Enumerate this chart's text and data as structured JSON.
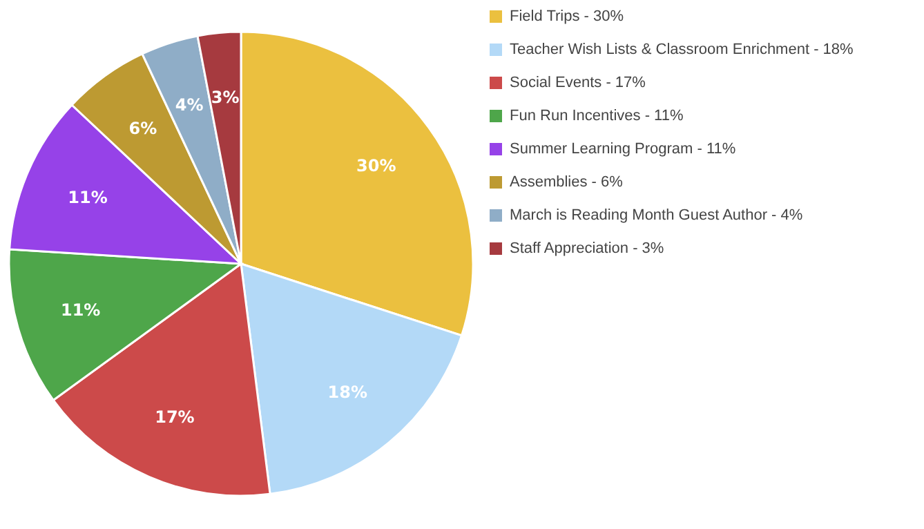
{
  "chart_data": {
    "type": "pie",
    "categories": [
      "Field Trips",
      "Teacher Wish Lists & Classroom Enrichment",
      "Social Events",
      "Fun Run Incentives",
      "Summer Learning Program",
      "Assemblies",
      "March is Reading Month Guest Author",
      "Staff Appreciation"
    ],
    "values": [
      30,
      18,
      17,
      11,
      11,
      6,
      4,
      3
    ],
    "value_labels": [
      "30%",
      "18%",
      "17%",
      "11%",
      "11%",
      "6%",
      "4%",
      "3%"
    ],
    "colors": [
      "#ebc03f",
      "#b3d9f7",
      "#cc4a4a",
      "#4ea64a",
      "#9642e8",
      "#bd9a32",
      "#8fadc7",
      "#a63a3f"
    ],
    "legend": "top right"
  }
}
